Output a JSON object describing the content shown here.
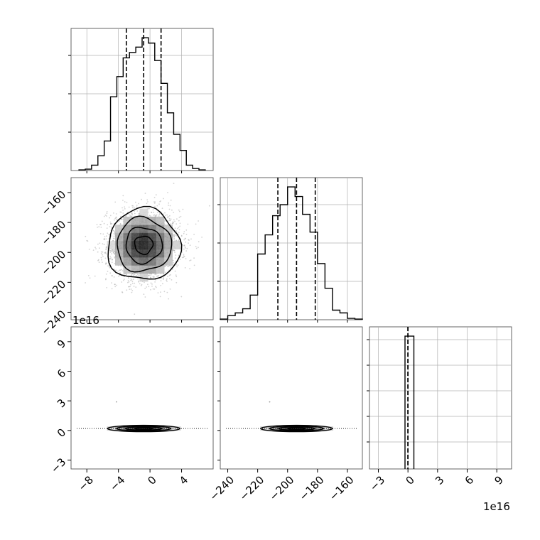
{
  "chart_data": {
    "type": "corner",
    "colors": {
      "line": "#000000",
      "grid": "#b0b0b0",
      "quantile": "#000000",
      "points": "#808080"
    },
    "grid": true,
    "parameters": [
      {
        "index": 0,
        "mean": -0.8,
        "std": 2.3,
        "range": [
          -10,
          8
        ],
        "quantiles": [
          -3.0,
          -0.8,
          1.4
        ],
        "ticks": [
          -8,
          -4,
          0,
          4
        ],
        "tick_labels": [
          "−8",
          "−4",
          "0",
          "4"
        ]
      },
      {
        "index": 1,
        "mean": -194,
        "std": 12,
        "range": [
          -245,
          -150
        ],
        "quantiles": [
          -206.5,
          -194,
          -181.5
        ],
        "ticks": [
          -240,
          -220,
          -200,
          -180,
          -160
        ],
        "tick_labels": [
          "−240",
          "−220",
          "−200",
          "−180",
          "−160"
        ]
      },
      {
        "index": 2,
        "mean": 0,
        "std": 0.05,
        "range": [
          -3.9,
          10.5
        ],
        "quantiles": [
          0,
          0,
          0
        ],
        "ticks": [
          -3,
          0,
          3,
          6,
          9
        ],
        "tick_labels": [
          "−3",
          "0",
          "3",
          "6",
          "9"
        ],
        "offset_label": "1e16"
      }
    ],
    "marginals": [
      {
        "parameter": 0,
        "bin_edges": [
          -9,
          -8.2,
          -7.4,
          -6.6,
          -5.8,
          -5.0,
          -4.2,
          -3.4,
          -2.6,
          -1.8,
          -1.0,
          -0.2,
          0.6,
          1.4,
          2.2,
          3.0,
          3.8,
          4.6,
          5.4,
          6.2,
          7.0
        ],
        "counts": [
          0.5,
          1,
          4,
          11,
          22,
          55,
          70,
          84,
          88,
          92,
          99,
          95,
          82,
          65,
          43,
          27,
          15,
          4,
          1.5,
          0.5
        ]
      },
      {
        "parameter": 1,
        "bin_edges": [
          -245,
          -240,
          -235,
          -230,
          -225,
          -220,
          -215,
          -210,
          -205,
          -200,
          -195,
          -190,
          -185,
          -180,
          -175,
          -170,
          -165,
          -160,
          -155,
          -150
        ],
        "counts": [
          0.5,
          3,
          5,
          8,
          18,
          48,
          62,
          76,
          84,
          97,
          90,
          77,
          64,
          41,
          23,
          7,
          5,
          1,
          0.5
        ]
      },
      {
        "parameter": 2,
        "bin_edges": [
          -0.3,
          0,
          0.6
        ],
        "counts": [
          95,
          95
        ]
      }
    ],
    "joints": [
      {
        "x_parameter": 0,
        "y_parameter": 1,
        "center": [
          -0.8,
          -195
        ],
        "contour_radii_sigma": [
          0.5,
          1.0,
          1.5,
          2.0
        ]
      },
      {
        "x_parameter": 0,
        "y_parameter": 2,
        "center": [
          -0.8,
          0.2
        ],
        "contour_radii_sigma": [
          0.5,
          1.0,
          1.5,
          2.0
        ]
      },
      {
        "x_parameter": 1,
        "y_parameter": 2,
        "center": [
          -194,
          0.2
        ],
        "contour_radii_sigma": [
          0.5,
          1.0,
          1.5,
          2.0
        ]
      }
    ]
  }
}
